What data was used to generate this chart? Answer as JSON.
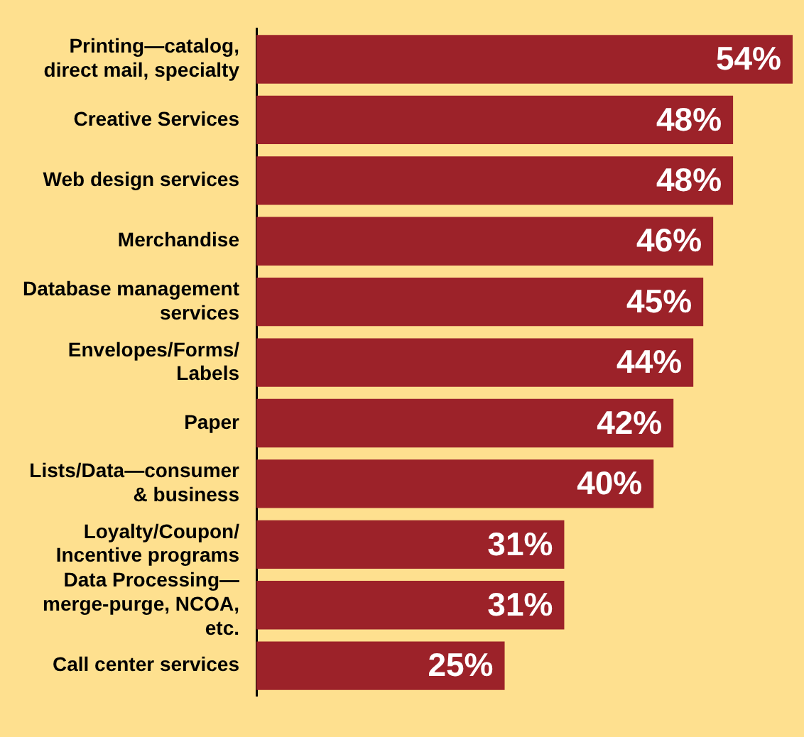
{
  "chart_data": {
    "type": "bar",
    "orientation": "horizontal",
    "categories": [
      "Printing—catalog, direct mail, specialty",
      "Creative Services",
      "Web design services",
      "Merchandise",
      "Database management services",
      "Envelopes/Forms/Labels",
      "Paper",
      "Lists/Data—consumer & business",
      "Loyalty/Coupon/Incentive programs",
      "Data Processing—merge-purge, NCOA, etc.",
      "Call center services"
    ],
    "values": [
      54,
      48,
      48,
      46,
      45,
      44,
      42,
      40,
      31,
      31,
      25
    ],
    "value_labels": [
      "54%",
      "48%",
      "48%",
      "46%",
      "45%",
      "44%",
      "42%",
      "40%",
      "31%",
      "31%",
      "25%"
    ],
    "color": "#9c2229",
    "legend": false
  }
}
